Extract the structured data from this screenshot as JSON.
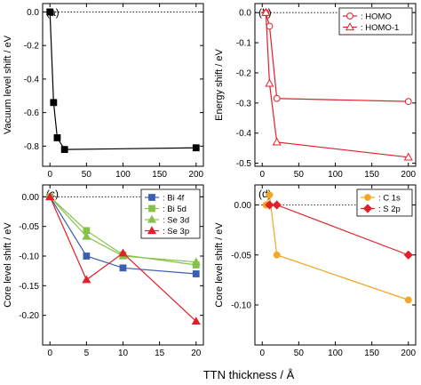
{
  "figure": {
    "xlabel": "TTN thickness / Å"
  },
  "chart_data": [
    {
      "id": "a",
      "type": "line",
      "panel_label": "(a)",
      "ylabel": "Vacuum level shift / eV",
      "xlim": [
        -10,
        210
      ],
      "ylim": [
        -0.92,
        0.05
      ],
      "xticks": [
        0,
        50,
        100,
        150,
        200
      ],
      "xtick_labels": [
        "0",
        "50",
        "100",
        "150",
        "200"
      ],
      "yticks": [
        -0.8,
        -0.6,
        -0.4,
        -0.2,
        0.0
      ],
      "ytick_labels": [
        "-0.8",
        "-0.6",
        "-0.4",
        "-0.2",
        "0.0"
      ],
      "zero_line": true,
      "legend": [],
      "series": [
        {
          "x": [
            0,
            5,
            10,
            20,
            200
          ],
          "y": [
            0.0,
            -0.54,
            -0.75,
            -0.82,
            -0.81
          ],
          "color": "#000000",
          "marker": "square",
          "filled": true
        }
      ]
    },
    {
      "id": "b",
      "type": "line",
      "panel_label": "(b)",
      "ylabel": "Energy shift / eV",
      "xlim": [
        -10,
        210
      ],
      "ylim": [
        -0.51,
        0.03
      ],
      "xticks": [
        0,
        50,
        100,
        150,
        200
      ],
      "xtick_labels": [
        "0",
        "50",
        "100",
        "150",
        "200"
      ],
      "yticks": [
        -0.5,
        -0.4,
        -0.3,
        -0.2,
        -0.1,
        0.0
      ],
      "ytick_labels": [
        "-0.5",
        "-0.4",
        "-0.3",
        "-0.2",
        "-0.1",
        "0.0"
      ],
      "zero_line": true,
      "legend_position": "top-right",
      "legend": [
        {
          "label": ": HOMO",
          "series": 0
        },
        {
          "label": ": HOMO-1",
          "series": 1
        }
      ],
      "series": [
        {
          "x": [
            5,
            10,
            20,
            200
          ],
          "y": [
            0.0,
            -0.045,
            -0.285,
            -0.295
          ],
          "color": "#e0202a",
          "marker": "circle",
          "filled": false
        },
        {
          "x": [
            5,
            10,
            20,
            200
          ],
          "y": [
            0.0,
            -0.235,
            -0.43,
            -0.48
          ],
          "color": "#e0202a",
          "marker": "triangle",
          "filled": false
        }
      ]
    },
    {
      "id": "c",
      "type": "line",
      "panel_label": "(c)",
      "ylabel": "Core level shift / eV",
      "xlim": [
        -1,
        21
      ],
      "ylim": [
        -0.25,
        0.02
      ],
      "xticks": [
        0,
        5,
        10,
        15,
        20
      ],
      "xtick_labels": [
        "0",
        "5",
        "10",
        "15",
        "20"
      ],
      "yticks": [
        -0.2,
        -0.15,
        -0.1,
        -0.05,
        0.0
      ],
      "ytick_labels": [
        "-0.20",
        "-0.15",
        "-0.10",
        "-0.05",
        "0.00"
      ],
      "zero_line": true,
      "legend_position": "top-right",
      "legend": [
        {
          "label": ": Bi 4f",
          "series": 0
        },
        {
          "label": ": Bi 5d",
          "series": 1
        },
        {
          "label": ": Se 3d",
          "series": 2
        },
        {
          "label": ": Se 3p",
          "series": 3
        }
      ],
      "series": [
        {
          "x": [
            0,
            5,
            10,
            20
          ],
          "y": [
            0.0,
            -0.1,
            -0.12,
            -0.13
          ],
          "color": "#3a5fb0",
          "marker": "square",
          "filled": true
        },
        {
          "x": [
            0,
            5,
            10,
            20
          ],
          "y": [
            0.0,
            -0.057,
            -0.098,
            -0.115
          ],
          "color": "#86c24a",
          "marker": "square",
          "filled": true
        },
        {
          "x": [
            0,
            5,
            10,
            20
          ],
          "y": [
            0.0,
            -0.067,
            -0.1,
            -0.11
          ],
          "color": "#86c24a",
          "marker": "triangle",
          "filled": true
        },
        {
          "x": [
            0,
            5,
            10,
            20
          ],
          "y": [
            0.0,
            -0.14,
            -0.095,
            -0.21
          ],
          "color": "#e0202a",
          "marker": "triangle",
          "filled": true
        }
      ]
    },
    {
      "id": "d",
      "type": "line",
      "panel_label": "(d)",
      "ylabel": "Core level shift / eV",
      "xlim": [
        -10,
        210
      ],
      "ylim": [
        -0.14,
        0.02
      ],
      "xticks": [
        0,
        50,
        100,
        150,
        200
      ],
      "xtick_labels": [
        "0",
        "50",
        "100",
        "150",
        "200"
      ],
      "yticks": [
        -0.1,
        -0.05,
        0.0
      ],
      "ytick_labels": [
        "-0.10",
        "-0.05",
        "0.00"
      ],
      "zero_line": true,
      "legend_position": "top-right",
      "legend": [
        {
          "label": ": C 1s",
          "series": 0
        },
        {
          "label": ": S 2p",
          "series": 1
        }
      ],
      "series": [
        {
          "x": [
            5,
            10,
            20,
            200
          ],
          "y": [
            0.0,
            0.01,
            -0.05,
            -0.095
          ],
          "color": "#f5a623",
          "marker": "circle",
          "filled": true
        },
        {
          "x": [
            10,
            20,
            200
          ],
          "y": [
            0.0,
            0.0,
            -0.05
          ],
          "color": "#e0202a",
          "marker": "diamond",
          "filled": true
        }
      ]
    }
  ]
}
